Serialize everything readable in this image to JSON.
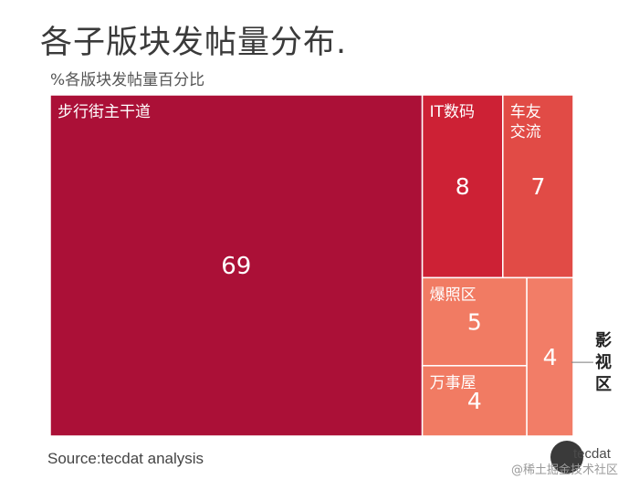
{
  "chart_data": {
    "type": "treemap",
    "title": "各子版块发帖量分布.",
    "subtitle": "%各版块发帖量百分比",
    "source": "Source:tecdat analysis",
    "items": [
      {
        "name": "步行街主干道",
        "value": 69,
        "color": "#ab1037"
      },
      {
        "name": "IT数码",
        "value": 8,
        "color": "#cd2135"
      },
      {
        "name": "车友交流",
        "value": 7,
        "color": "#e14b46"
      },
      {
        "name": "爆照区",
        "value": 5,
        "color": "#f17b63"
      },
      {
        "name": "万事屋",
        "value": 4,
        "color": "#f17b63"
      },
      {
        "name": "影视区",
        "value": 4,
        "color": "#f27d67"
      }
    ],
    "label_lines": {
      "IT数码": [
        "IT数码"
      ],
      "车友交流": [
        "车友",
        "交流"
      ],
      "影视区": [
        "影",
        "视",
        "区"
      ]
    }
  },
  "footer": {
    "logo_text": "tecdat",
    "watermark": "@稀土掘金技术社区"
  }
}
